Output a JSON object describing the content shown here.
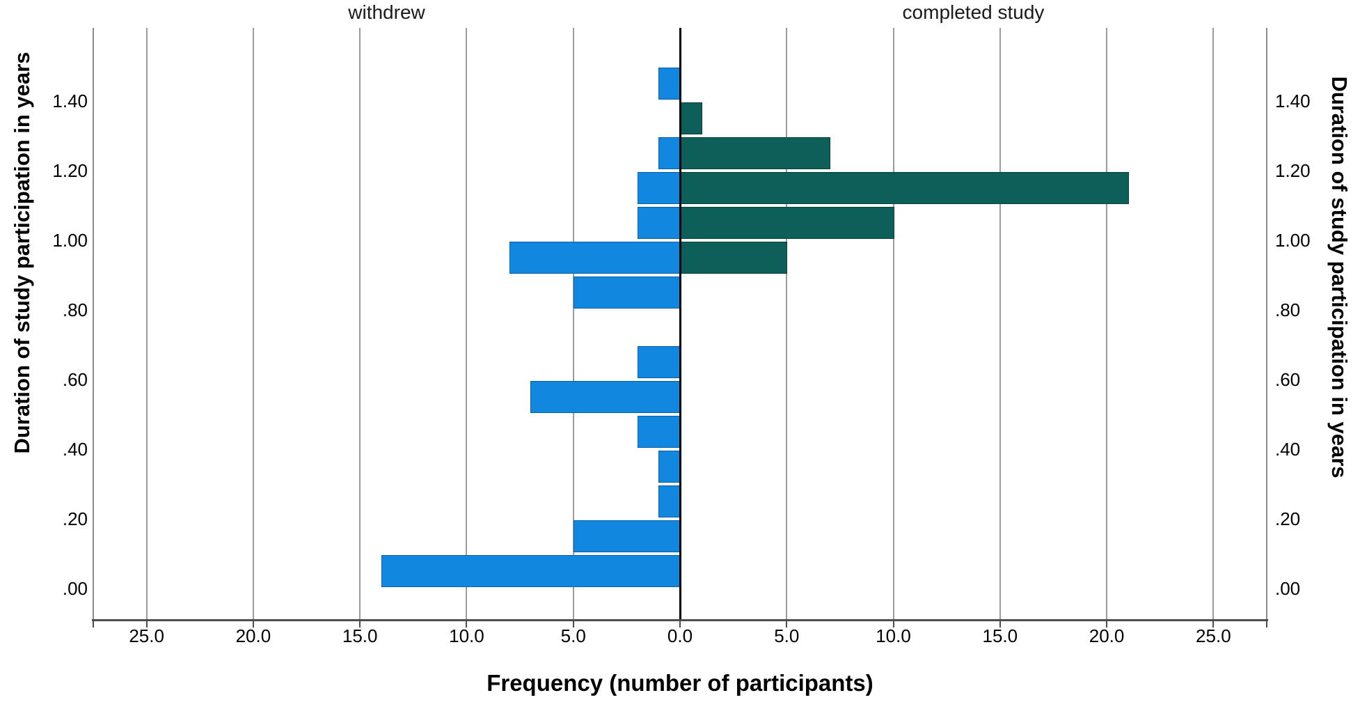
{
  "chart_data": {
    "type": "bar",
    "subtype": "population_pyramid_histogram",
    "title_left_panel": "withdrew",
    "title_right_panel": "completed study",
    "xlabel": "Frequency (number of participants)",
    "ylabel": "Duration of study participation in years",
    "bin_width": 0.1,
    "bin_lower_edges": [
      0.0,
      0.1,
      0.2,
      0.3,
      0.4,
      0.5,
      0.6,
      0.7,
      0.8,
      0.9,
      1.0,
      1.1,
      1.2,
      1.3,
      1.4
    ],
    "series": [
      {
        "name": "withdrew",
        "side": "left",
        "color": "#1287DF",
        "border_color": "#0A5FA6",
        "values": [
          14,
          5,
          1,
          1,
          2,
          7,
          2,
          0,
          5,
          8,
          2,
          2,
          1,
          0,
          1
        ]
      },
      {
        "name": "completed study",
        "side": "right",
        "color": "#0D5F5A",
        "border_color": "#06403C",
        "values": [
          0,
          0,
          0,
          0,
          0,
          0,
          0,
          0,
          0,
          5,
          10,
          21,
          7,
          1,
          0
        ]
      }
    ],
    "x_axis": {
      "tick_labels": [
        "25.0",
        "20.0",
        "15.0",
        "10.0",
        "5.0",
        "0.0",
        "5.0",
        "10.0",
        "15.0",
        "20.0",
        "25.0"
      ],
      "tick_values_signed": [
        -25,
        -20,
        -15,
        -10,
        -5,
        0,
        5,
        10,
        15,
        20,
        25
      ],
      "max_each_side": 27.5,
      "grid": true
    },
    "y_axis": {
      "tick_labels": [
        ".00",
        ".20",
        ".40",
        ".60",
        ".80",
        "1.00",
        "1.20",
        "1.40"
      ],
      "tick_values": [
        0,
        0.2,
        0.4,
        0.6,
        0.8,
        1.0,
        1.2,
        1.4
      ],
      "range": [
        0,
        1.5
      ],
      "label_both_sides": true
    },
    "colors": {
      "grid": "#9B9B9B",
      "axis": "#4D4D4D",
      "frame": "#8A8A8A",
      "divider": "#000000",
      "text": "#000000"
    }
  }
}
